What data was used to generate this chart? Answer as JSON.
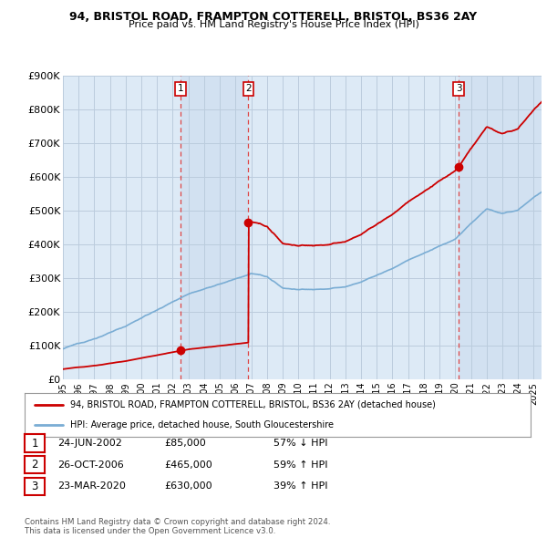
{
  "title1": "94, BRISTOL ROAD, FRAMPTON COTTERELL, BRISTOL, BS36 2AY",
  "title2": "Price paid vs. HM Land Registry's House Price Index (HPI)",
  "ylabel_ticks": [
    "£0",
    "£100K",
    "£200K",
    "£300K",
    "£400K",
    "£500K",
    "£600K",
    "£700K",
    "£800K",
    "£900K"
  ],
  "ylim": [
    0,
    900000
  ],
  "xlim_start": 1995.0,
  "xlim_end": 2025.5,
  "sale_color": "#cc0000",
  "hpi_color": "#7aadd4",
  "vline_color": "#dd4444",
  "shade_color": "#ccdcee",
  "purchases": [
    {
      "label": "1",
      "date_num": 2002.48,
      "price": 85000,
      "date_str": "24-JUN-2002",
      "price_str": "£85,000",
      "pct_str": "57% ↓ HPI"
    },
    {
      "label": "2",
      "date_num": 2006.82,
      "price": 465000,
      "date_str": "26-OCT-2006",
      "price_str": "£465,000",
      "pct_str": "59% ↑ HPI"
    },
    {
      "label": "3",
      "date_num": 2020.23,
      "price": 630000,
      "date_str": "23-MAR-2020",
      "price_str": "£630,000",
      "pct_str": "39% ↑ HPI"
    }
  ],
  "legend_label1": "94, BRISTOL ROAD, FRAMPTON COTTERELL, BRISTOL, BS36 2AY (detached house)",
  "legend_label2": "HPI: Average price, detached house, South Gloucestershire",
  "footnote": "Contains HM Land Registry data © Crown copyright and database right 2024.\nThis data is licensed under the Open Government Licence v3.0.",
  "background_color": "#ddeaf6",
  "plot_bg_color": "#ffffff",
  "grid_color": "#bbccdd"
}
